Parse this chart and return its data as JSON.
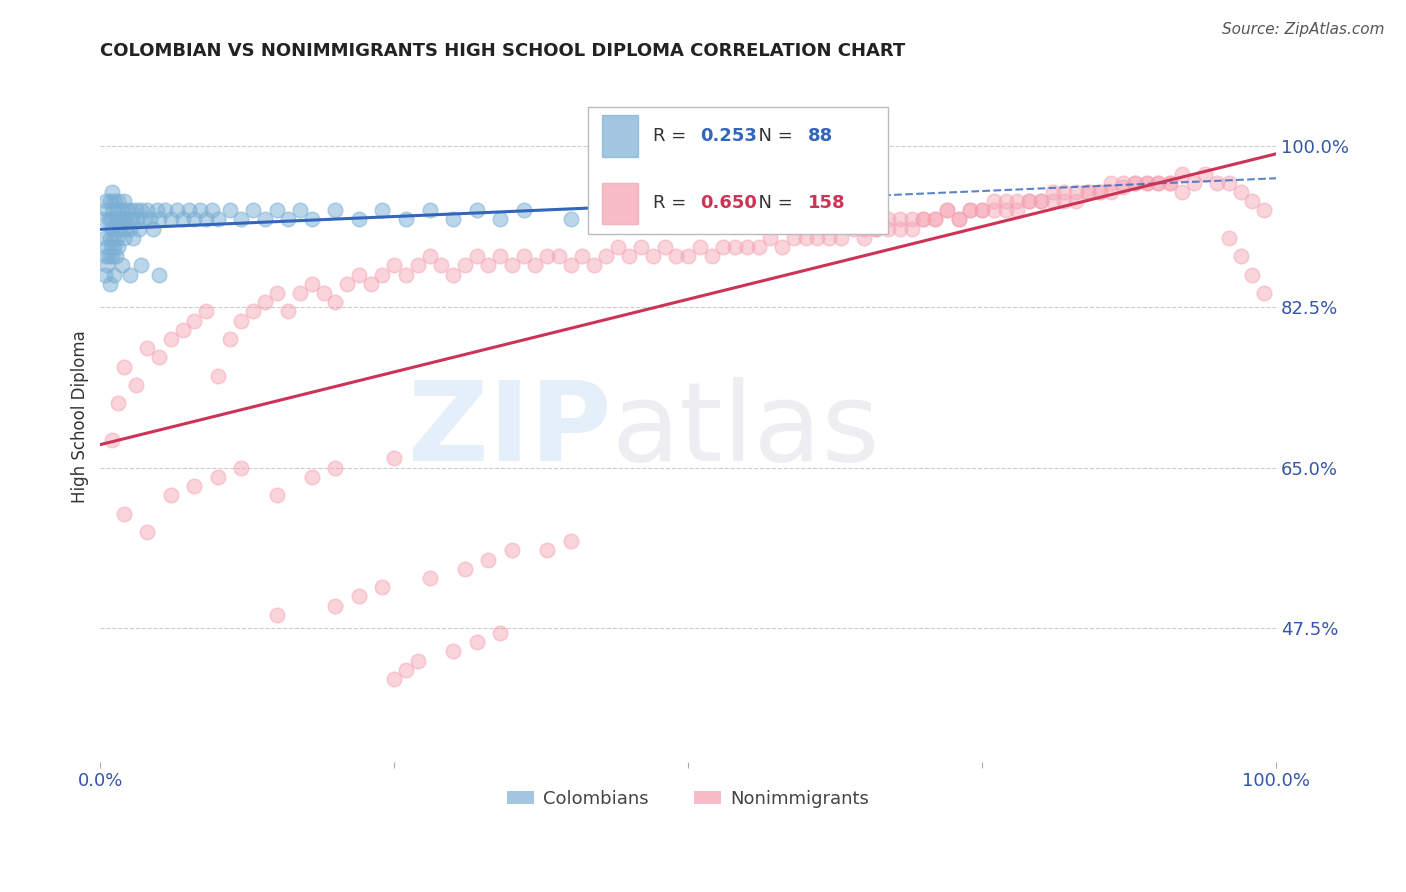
{
  "title": "COLOMBIAN VS NONIMMIGRANTS HIGH SCHOOL DIPLOMA CORRELATION CHART",
  "source": "Source: ZipAtlas.com",
  "ylabel": "High School Diploma",
  "ytick_labels": [
    "47.5%",
    "65.0%",
    "82.5%",
    "100.0%"
  ],
  "ytick_values": [
    0.475,
    0.65,
    0.825,
    1.0
  ],
  "xlim": [
    0.0,
    1.0
  ],
  "ylim": [
    0.33,
    1.08
  ],
  "legend_blue_r": "0.253",
  "legend_blue_n": "88",
  "legend_pink_r": "0.650",
  "legend_pink_n": "158",
  "blue_color": "#7BAFD4",
  "pink_color": "#F4A0B0",
  "blue_line_color": "#3366BB",
  "pink_line_color": "#CC3355",
  "grid_color": "#CCCCCC",
  "title_color": "#222222",
  "source_color": "#555555",
  "tick_color": "#3355AA",
  "ylabel_color": "#333333"
}
